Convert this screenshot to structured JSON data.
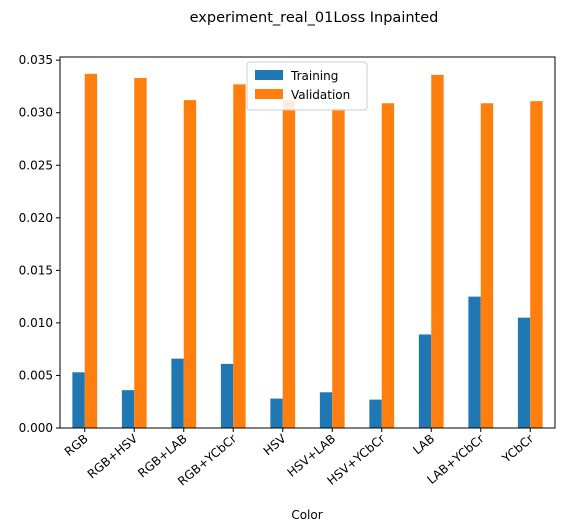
{
  "chart_data": {
    "type": "bar",
    "title": "experiment_real_01Loss Inpainted",
    "xlabel": "Color",
    "ylabel": "",
    "categories": [
      "RGB",
      "RGB+HSV",
      "RGB+LAB",
      "RGB+YCbCr",
      "HSV",
      "HSV+LAB",
      "HSV+YCbCr",
      "LAB",
      "LAB+YCbCr",
      "YCbCr"
    ],
    "series": [
      {
        "name": "Training",
        "color": "#1f77b4",
        "values": [
          0.0053,
          0.0036,
          0.0066,
          0.0061,
          0.0028,
          0.0034,
          0.0027,
          0.0089,
          0.0125,
          0.0105
        ]
      },
      {
        "name": "Validation",
        "color": "#ff7f0e",
        "values": [
          0.0337,
          0.0333,
          0.0312,
          0.0327,
          0.0312,
          0.0304,
          0.0309,
          0.0336,
          0.0309,
          0.0311
        ]
      }
    ],
    "ylim": [
      0,
      0.0353
    ],
    "yticks": [
      "0.000",
      "0.005",
      "0.010",
      "0.015",
      "0.020",
      "0.025",
      "0.030",
      "0.035"
    ],
    "grid": false,
    "legend_position": "top-center"
  }
}
